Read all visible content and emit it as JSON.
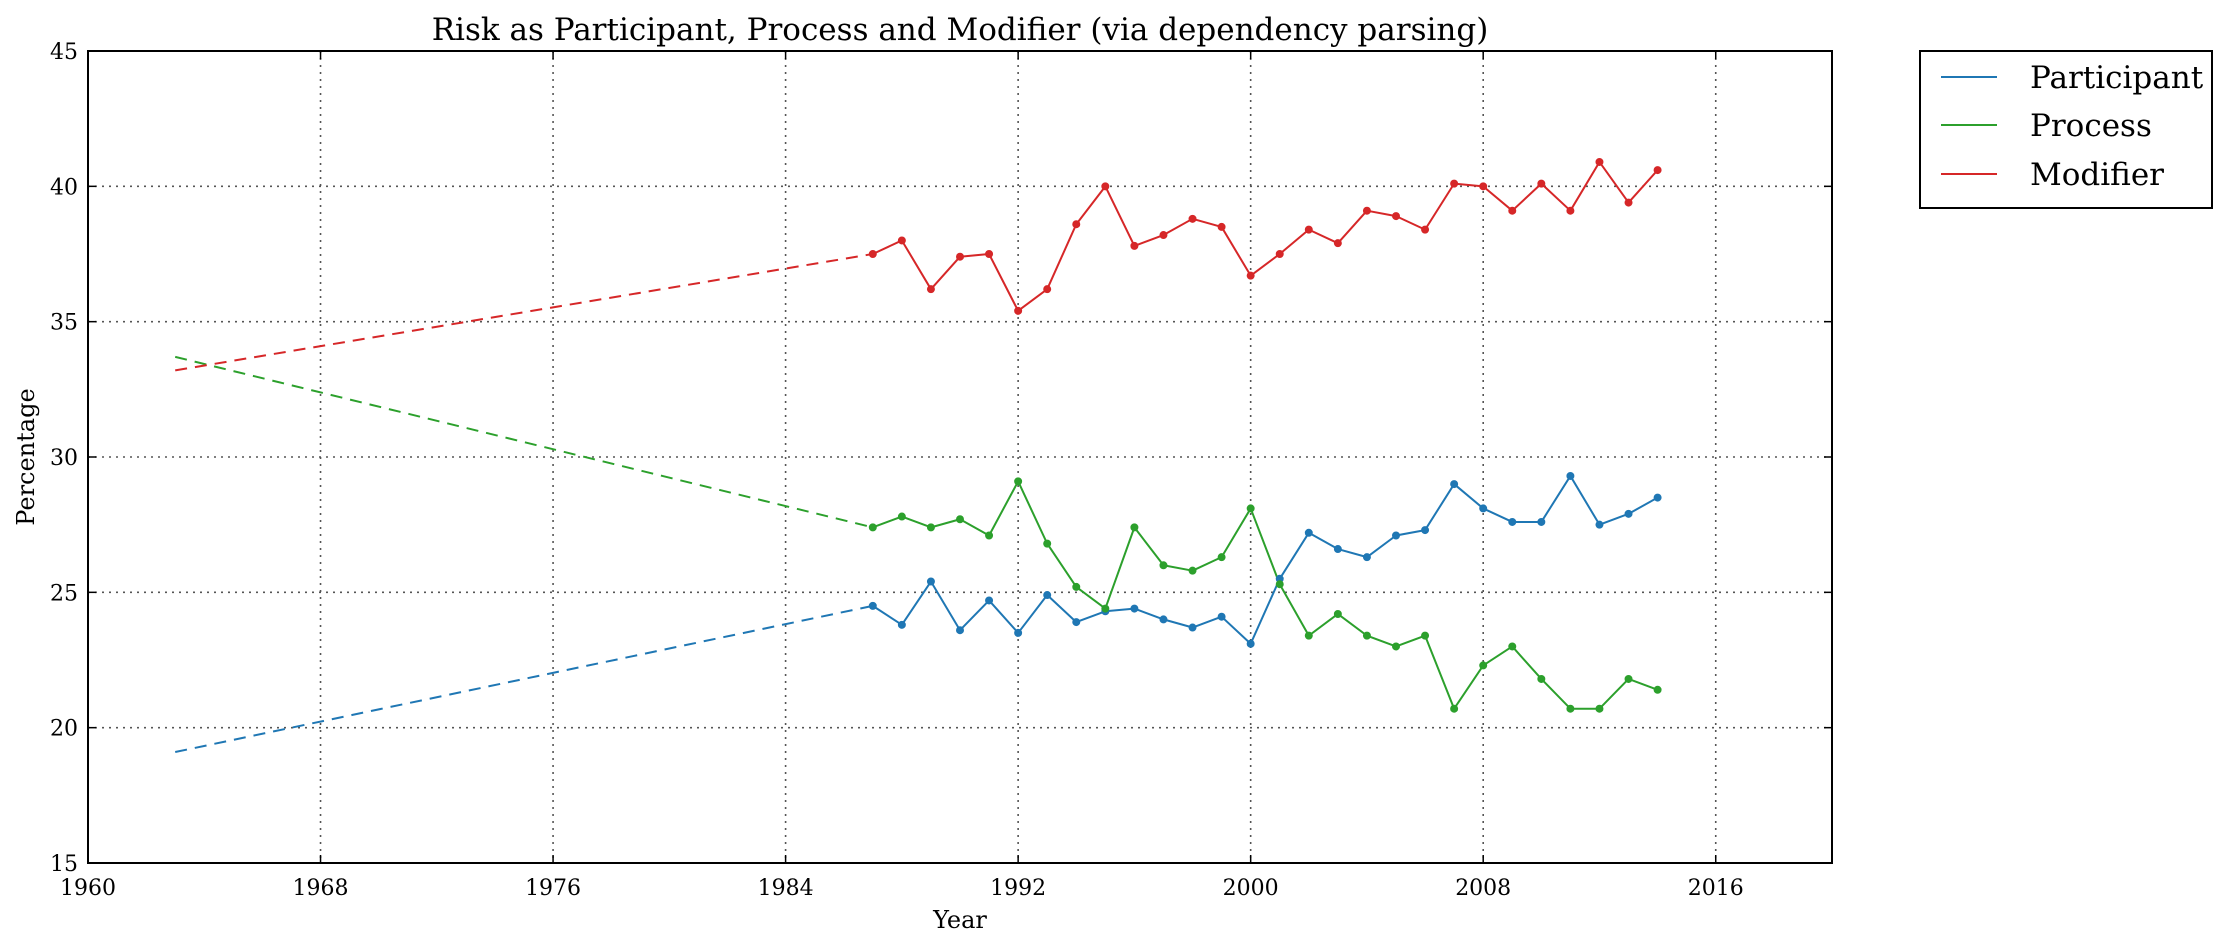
{
  "chart_data": {
    "type": "line",
    "title": "Risk as Participant, Process and Modifier (via dependency parsing)",
    "xlabel": "Year",
    "ylabel": "Percentage",
    "xlim": [
      1960,
      2020
    ],
    "ylim": [
      15,
      45
    ],
    "xticks": [
      1960,
      1968,
      1976,
      1984,
      1992,
      2000,
      2008,
      2016
    ],
    "yticks": [
      15,
      20,
      25,
      30,
      35,
      40,
      45
    ],
    "grid": true,
    "legend": "outside-top-right",
    "series": [
      {
        "name": "Participant",
        "color": "#1f77b4",
        "dashed_segment": {
          "x": [
            1963,
            1987
          ],
          "y": [
            19.1,
            24.5
          ]
        },
        "x": [
          1987,
          1988,
          1989,
          1990,
          1991,
          1992,
          1993,
          1994,
          1995,
          1996,
          1997,
          1998,
          1999,
          2000,
          2001,
          2002,
          2003,
          2004,
          2005,
          2006,
          2007,
          2008,
          2009,
          2010,
          2011,
          2012,
          2013,
          2014
        ],
        "y": [
          24.5,
          23.8,
          25.4,
          23.6,
          24.7,
          23.5,
          24.9,
          23.9,
          24.3,
          24.4,
          24.0,
          23.7,
          24.1,
          23.1,
          25.5,
          27.2,
          26.6,
          26.3,
          27.1,
          27.3,
          29.0,
          28.1,
          27.6,
          27.6,
          29.3,
          27.5,
          27.9,
          28.5
        ]
      },
      {
        "name": "Process",
        "color": "#2ca02c",
        "dashed_segment": {
          "x": [
            1963,
            1987
          ],
          "y": [
            33.7,
            27.4
          ]
        },
        "x": [
          1987,
          1988,
          1989,
          1990,
          1991,
          1992,
          1993,
          1994,
          1995,
          1996,
          1997,
          1998,
          1999,
          2000,
          2001,
          2002,
          2003,
          2004,
          2005,
          2006,
          2007,
          2008,
          2009,
          2010,
          2011,
          2012,
          2013,
          2014
        ],
        "y": [
          27.4,
          27.8,
          27.4,
          27.7,
          27.1,
          29.1,
          26.8,
          25.2,
          24.4,
          27.4,
          26.0,
          25.8,
          26.3,
          28.1,
          25.3,
          23.4,
          24.2,
          23.4,
          23.0,
          23.4,
          20.7,
          22.3,
          23.0,
          21.8,
          20.7,
          20.7,
          21.8,
          21.4
        ]
      },
      {
        "name": "Modifier",
        "color": "#d62728",
        "dashed_segment": {
          "x": [
            1963,
            1987
          ],
          "y": [
            33.2,
            37.5
          ]
        },
        "x": [
          1987,
          1988,
          1989,
          1990,
          1991,
          1992,
          1993,
          1994,
          1995,
          1996,
          1997,
          1998,
          1999,
          2000,
          2001,
          2002,
          2003,
          2004,
          2005,
          2006,
          2007,
          2008,
          2009,
          2010,
          2011,
          2012,
          2013,
          2014
        ],
        "y": [
          37.5,
          38.0,
          36.2,
          37.4,
          37.5,
          35.4,
          36.2,
          38.6,
          40.0,
          37.8,
          38.2,
          38.8,
          38.5,
          36.7,
          37.5,
          38.4,
          37.9,
          39.1,
          38.9,
          38.4,
          40.1,
          40.0,
          39.1,
          40.1,
          39.1,
          40.9,
          39.4,
          40.6
        ]
      }
    ]
  }
}
